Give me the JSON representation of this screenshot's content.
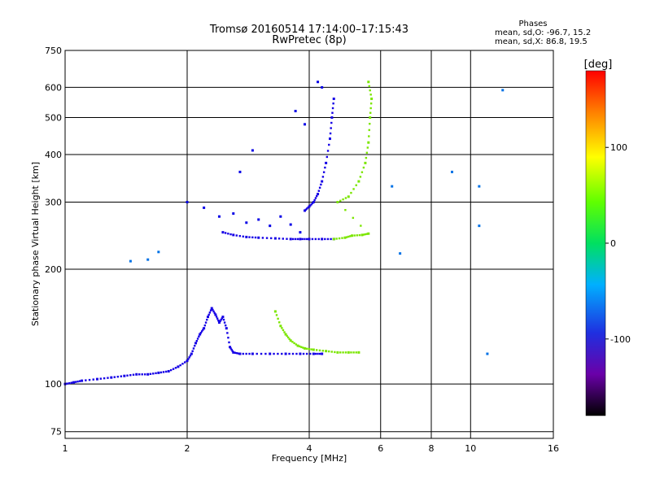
{
  "chart_data": {
    "type": "scatter",
    "title_line1": "Tromsø 20160514 17:14:00–17:15:43",
    "title_line2": "RwPretec (8p)",
    "xlabel": "Frequency [MHz]",
    "ylabel": "Stationary phase Virtual Height [km]",
    "x_scale": "log",
    "y_scale": "log",
    "xlim": [
      1,
      16
    ],
    "ylim": [
      72,
      750
    ],
    "x_ticks": [
      {
        "value": 1,
        "label": "1"
      },
      {
        "value": 2,
        "label": "2"
      },
      {
        "value": 4,
        "label": "4"
      },
      {
        "value": 6,
        "label": "6"
      },
      {
        "value": 8,
        "label": "8"
      },
      {
        "value": 10,
        "label": "10"
      },
      {
        "value": 16,
        "label": "16"
      }
    ],
    "y_ticks": [
      {
        "value": 75,
        "label": "75"
      },
      {
        "value": 100,
        "label": "100"
      },
      {
        "value": 200,
        "label": "200"
      },
      {
        "value": 300,
        "label": "300"
      },
      {
        "value": 400,
        "label": "400"
      },
      {
        "value": 500,
        "label": "500"
      },
      {
        "value": 600,
        "label": "600"
      },
      {
        "value": 750,
        "label": "750"
      }
    ],
    "grid": true,
    "phases": {
      "heading": "Phases",
      "line_o": "mean, sd,O: -96.7, 15.2",
      "line_x": "mean, sd,X:  86.8, 19.5"
    },
    "colorbar": {
      "unit": "[deg]",
      "range": [
        -180,
        180
      ],
      "ticks": [
        {
          "value": 100,
          "label": "100"
        },
        {
          "value": 0,
          "label": "0"
        },
        {
          "value": -100,
          "label": "-100"
        }
      ]
    },
    "series": [
      {
        "name": "O-mode E-region trace",
        "phase": -100,
        "points": [
          [
            1.0,
            100
          ],
          [
            1.05,
            101
          ],
          [
            1.1,
            102
          ],
          [
            1.2,
            103
          ],
          [
            1.3,
            104
          ],
          [
            1.4,
            105
          ],
          [
            1.5,
            106
          ],
          [
            1.6,
            106
          ],
          [
            1.7,
            107
          ],
          [
            1.8,
            108
          ],
          [
            1.9,
            111
          ],
          [
            2.0,
            115
          ],
          [
            2.05,
            120
          ],
          [
            2.1,
            128
          ],
          [
            2.15,
            135
          ],
          [
            2.2,
            140
          ],
          [
            2.25,
            150
          ],
          [
            2.3,
            158
          ],
          [
            2.35,
            152
          ],
          [
            2.4,
            145
          ],
          [
            2.45,
            150
          ],
          [
            2.5,
            140
          ],
          [
            2.55,
            125
          ],
          [
            2.6,
            121
          ],
          [
            2.7,
            120
          ],
          [
            2.9,
            120
          ],
          [
            3.2,
            120
          ],
          [
            3.5,
            120
          ],
          [
            3.8,
            120
          ],
          [
            4.1,
            120
          ],
          [
            4.3,
            120
          ]
        ]
      },
      {
        "name": "X-mode E-region trace",
        "phase": 80,
        "points": [
          [
            3.3,
            155
          ],
          [
            3.4,
            142
          ],
          [
            3.5,
            135
          ],
          [
            3.6,
            130
          ],
          [
            3.75,
            126
          ],
          [
            3.9,
            124
          ],
          [
            4.1,
            123
          ],
          [
            4.4,
            122
          ],
          [
            4.7,
            121
          ],
          [
            5.0,
            121
          ],
          [
            5.3,
            121
          ]
        ]
      },
      {
        "name": "O-mode F-region trace",
        "phase": -100,
        "points": [
          [
            2.45,
            250
          ],
          [
            2.6,
            246
          ],
          [
            2.8,
            243
          ],
          [
            3.0,
            242
          ],
          [
            3.3,
            241
          ],
          [
            3.6,
            240
          ],
          [
            3.8,
            240
          ],
          [
            4.0,
            240
          ],
          [
            4.3,
            240
          ],
          [
            4.6,
            240
          ]
        ]
      },
      {
        "name": "O-mode F-region cusp",
        "phase": -100,
        "points": [
          [
            3.9,
            285
          ],
          [
            4.0,
            292
          ],
          [
            4.1,
            300
          ],
          [
            4.2,
            315
          ],
          [
            4.3,
            340
          ],
          [
            4.4,
            380
          ],
          [
            4.5,
            440
          ],
          [
            4.55,
            500
          ],
          [
            4.6,
            560
          ]
        ]
      },
      {
        "name": "X-mode F-region trace",
        "phase": 80,
        "points": [
          [
            4.6,
            240
          ],
          [
            4.9,
            242
          ],
          [
            5.1,
            245
          ],
          [
            5.4,
            246
          ],
          [
            5.6,
            248
          ],
          [
            4.7,
            300
          ],
          [
            5.0,
            310
          ],
          [
            5.3,
            340
          ],
          [
            5.5,
            380
          ],
          [
            5.6,
            430
          ],
          [
            5.65,
            500
          ],
          [
            5.7,
            560
          ],
          [
            5.6,
            620
          ]
        ]
      },
      {
        "name": "O-mode scattered F echoes",
        "phase": -95,
        "points": [
          [
            2.0,
            300
          ],
          [
            2.2,
            290
          ],
          [
            2.4,
            275
          ],
          [
            2.6,
            280
          ],
          [
            2.8,
            265
          ],
          [
            3.0,
            270
          ],
          [
            3.2,
            260
          ],
          [
            3.4,
            275
          ],
          [
            3.6,
            262
          ],
          [
            3.8,
            250
          ],
          [
            4.2,
            620
          ],
          [
            4.3,
            600
          ],
          [
            3.7,
            520
          ],
          [
            3.9,
            480
          ],
          [
            2.7,
            360
          ],
          [
            2.9,
            410
          ]
        ]
      },
      {
        "name": "Isolated echoes",
        "phase": -60,
        "points": [
          [
            1.45,
            210
          ],
          [
            1.6,
            212
          ],
          [
            1.7,
            222
          ],
          [
            6.4,
            330
          ],
          [
            6.7,
            220
          ],
          [
            10.5,
            330
          ],
          [
            12.0,
            590
          ],
          [
            11.0,
            120
          ],
          [
            9.0,
            360
          ],
          [
            10.5,
            260
          ]
        ]
      }
    ]
  }
}
